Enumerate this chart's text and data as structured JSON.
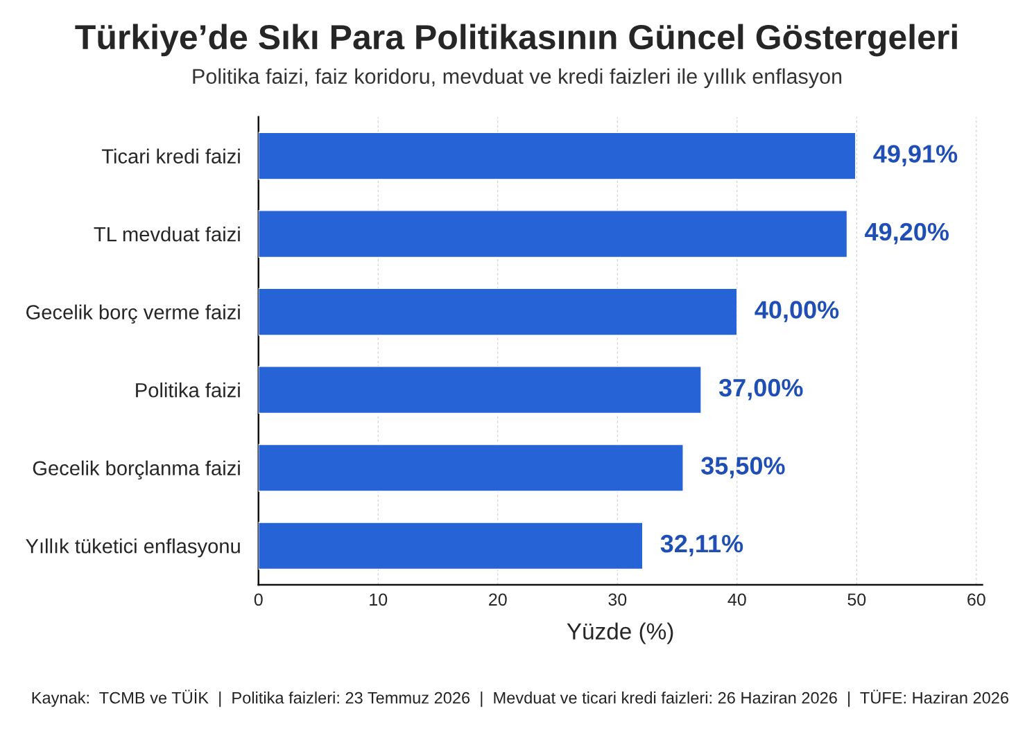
{
  "chart_data": {
    "type": "bar",
    "orientation": "horizontal",
    "title": "Türkiye’de Sıkı Para Politikasının Güncel Göstergeleri",
    "subtitle": "Politika faizi, faiz koridoru, mevduat ve kredi faizleri ile yıllık enflasyon",
    "categories": [
      "Ticari kredi faizi",
      "TL mevduat faizi",
      "Gecelik borç verme faizi",
      "Politika faizi",
      "Gecelik borçlanma faizi",
      "Yıllık tüketici enflasyonu"
    ],
    "values": [
      49.91,
      49.2,
      40.0,
      37.0,
      35.5,
      32.11
    ],
    "value_labels": [
      "49,91%",
      "49,20%",
      "40,00%",
      "37,00%",
      "35,50%",
      "32,11%"
    ],
    "color": "#2563d6",
    "xlabel": "Yüzde (%)",
    "xlim": [
      0,
      60.5
    ],
    "xticks": [
      0,
      10,
      20,
      30,
      40,
      50,
      60
    ],
    "grid": "x",
    "annotations": [
      "Kaynak:  TCMB ve TÜİK  |  Politika faizleri: 23 Temmuz 2026  |  Mevduat ve ticari kredi faizleri: 26 Haziran 2026  |  TÜFE: Haziran 2026"
    ]
  }
}
